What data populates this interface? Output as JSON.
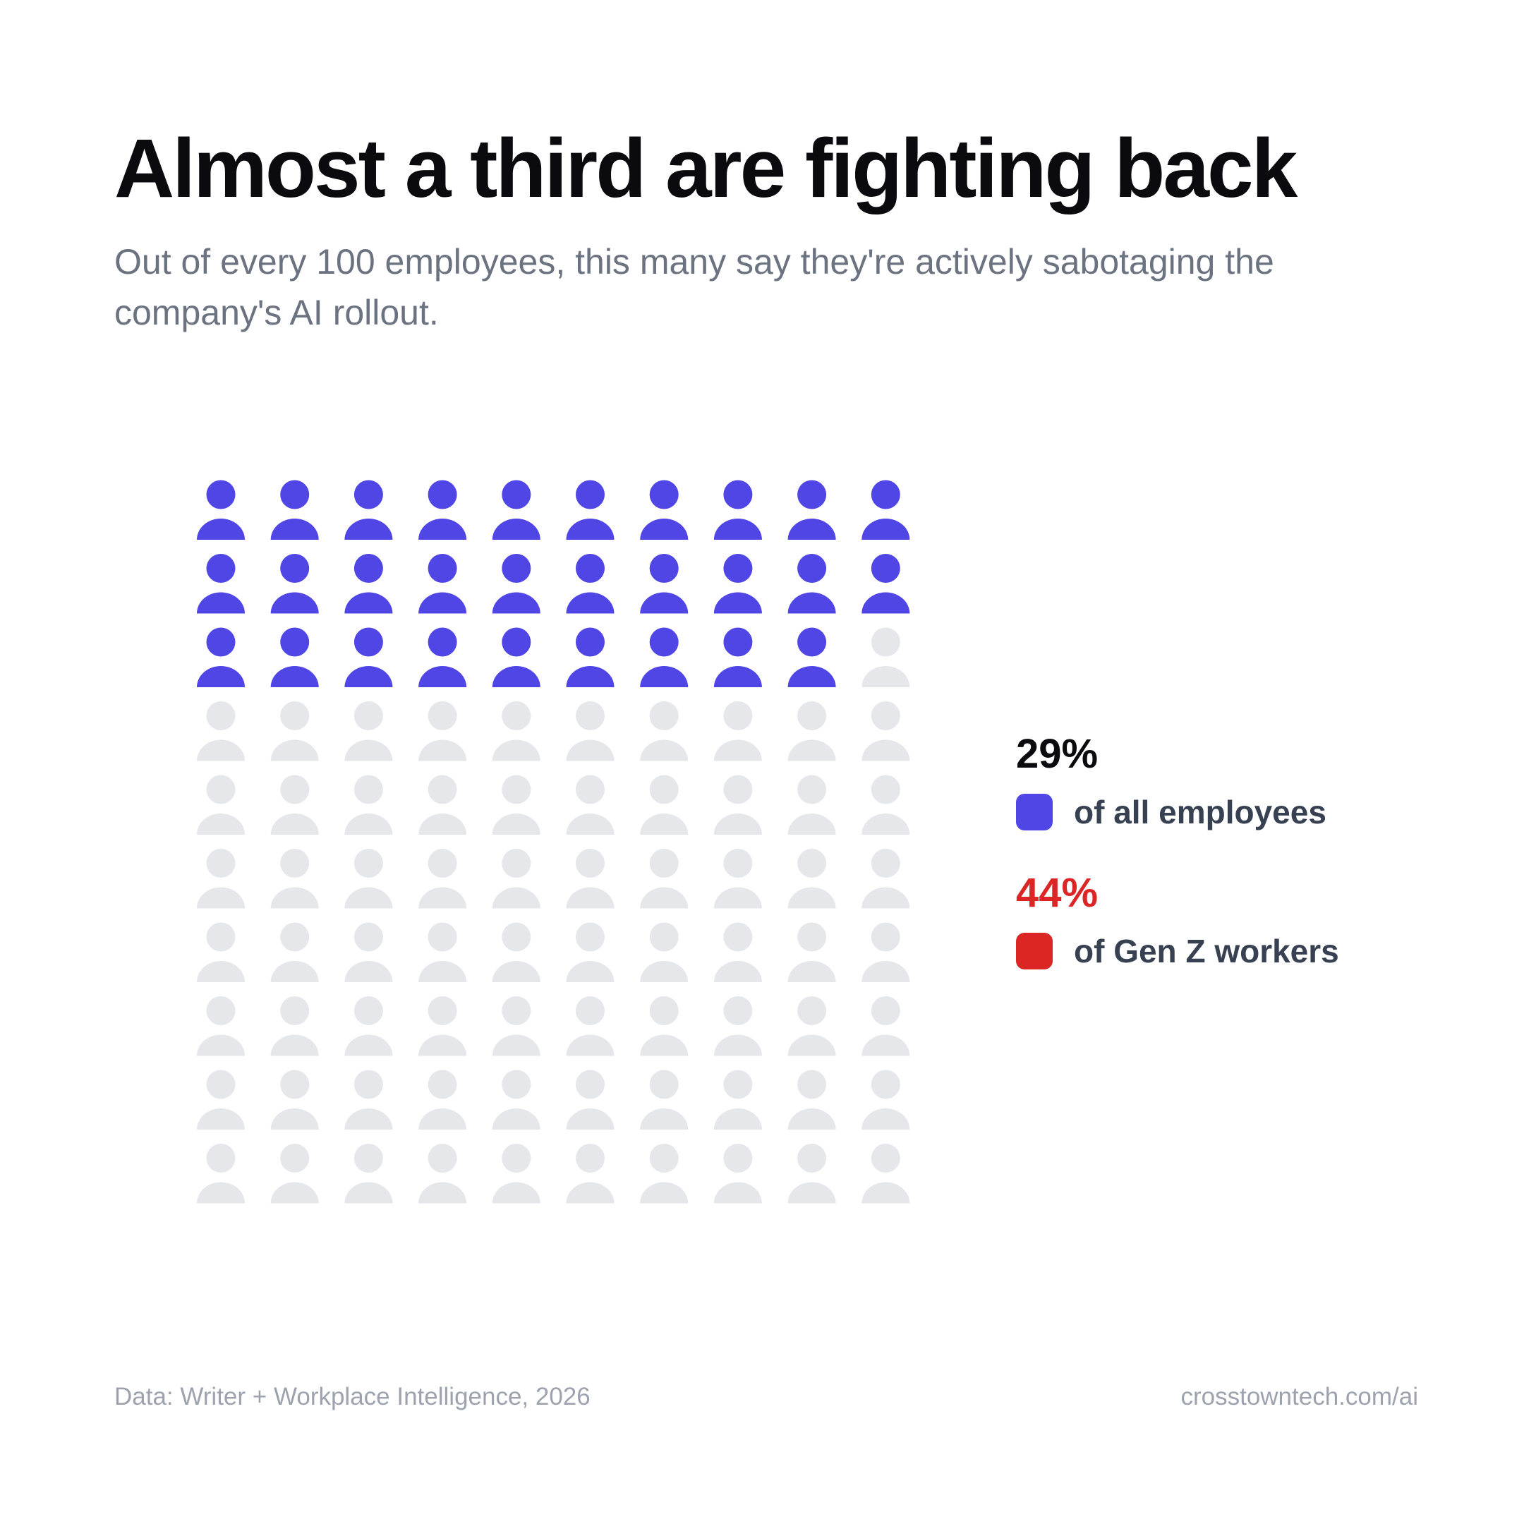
{
  "header": {
    "title": "Almost a third are fighting back",
    "subtitle": "Out of every 100 employees, this many say they're actively sabotaging the company's AI rollout."
  },
  "chart_data": {
    "type": "waffle",
    "total": 100,
    "rows": 10,
    "columns": 10,
    "highlighted": 29,
    "highlight_color": "#4f46e5",
    "base_color": "#e5e7eb",
    "icon": "person-icon"
  },
  "stats": [
    {
      "value": "29%",
      "label": "of all employees",
      "color": "#4f46e5",
      "value_color": "#0b0b0f"
    },
    {
      "value": "44%",
      "label": "of Gen Z workers",
      "color": "#dc2626",
      "value_color": "#dc2626"
    }
  ],
  "footer": {
    "source": "Data: Writer + Workplace Intelligence, 2026",
    "url": "crosstowntech.com/ai"
  }
}
